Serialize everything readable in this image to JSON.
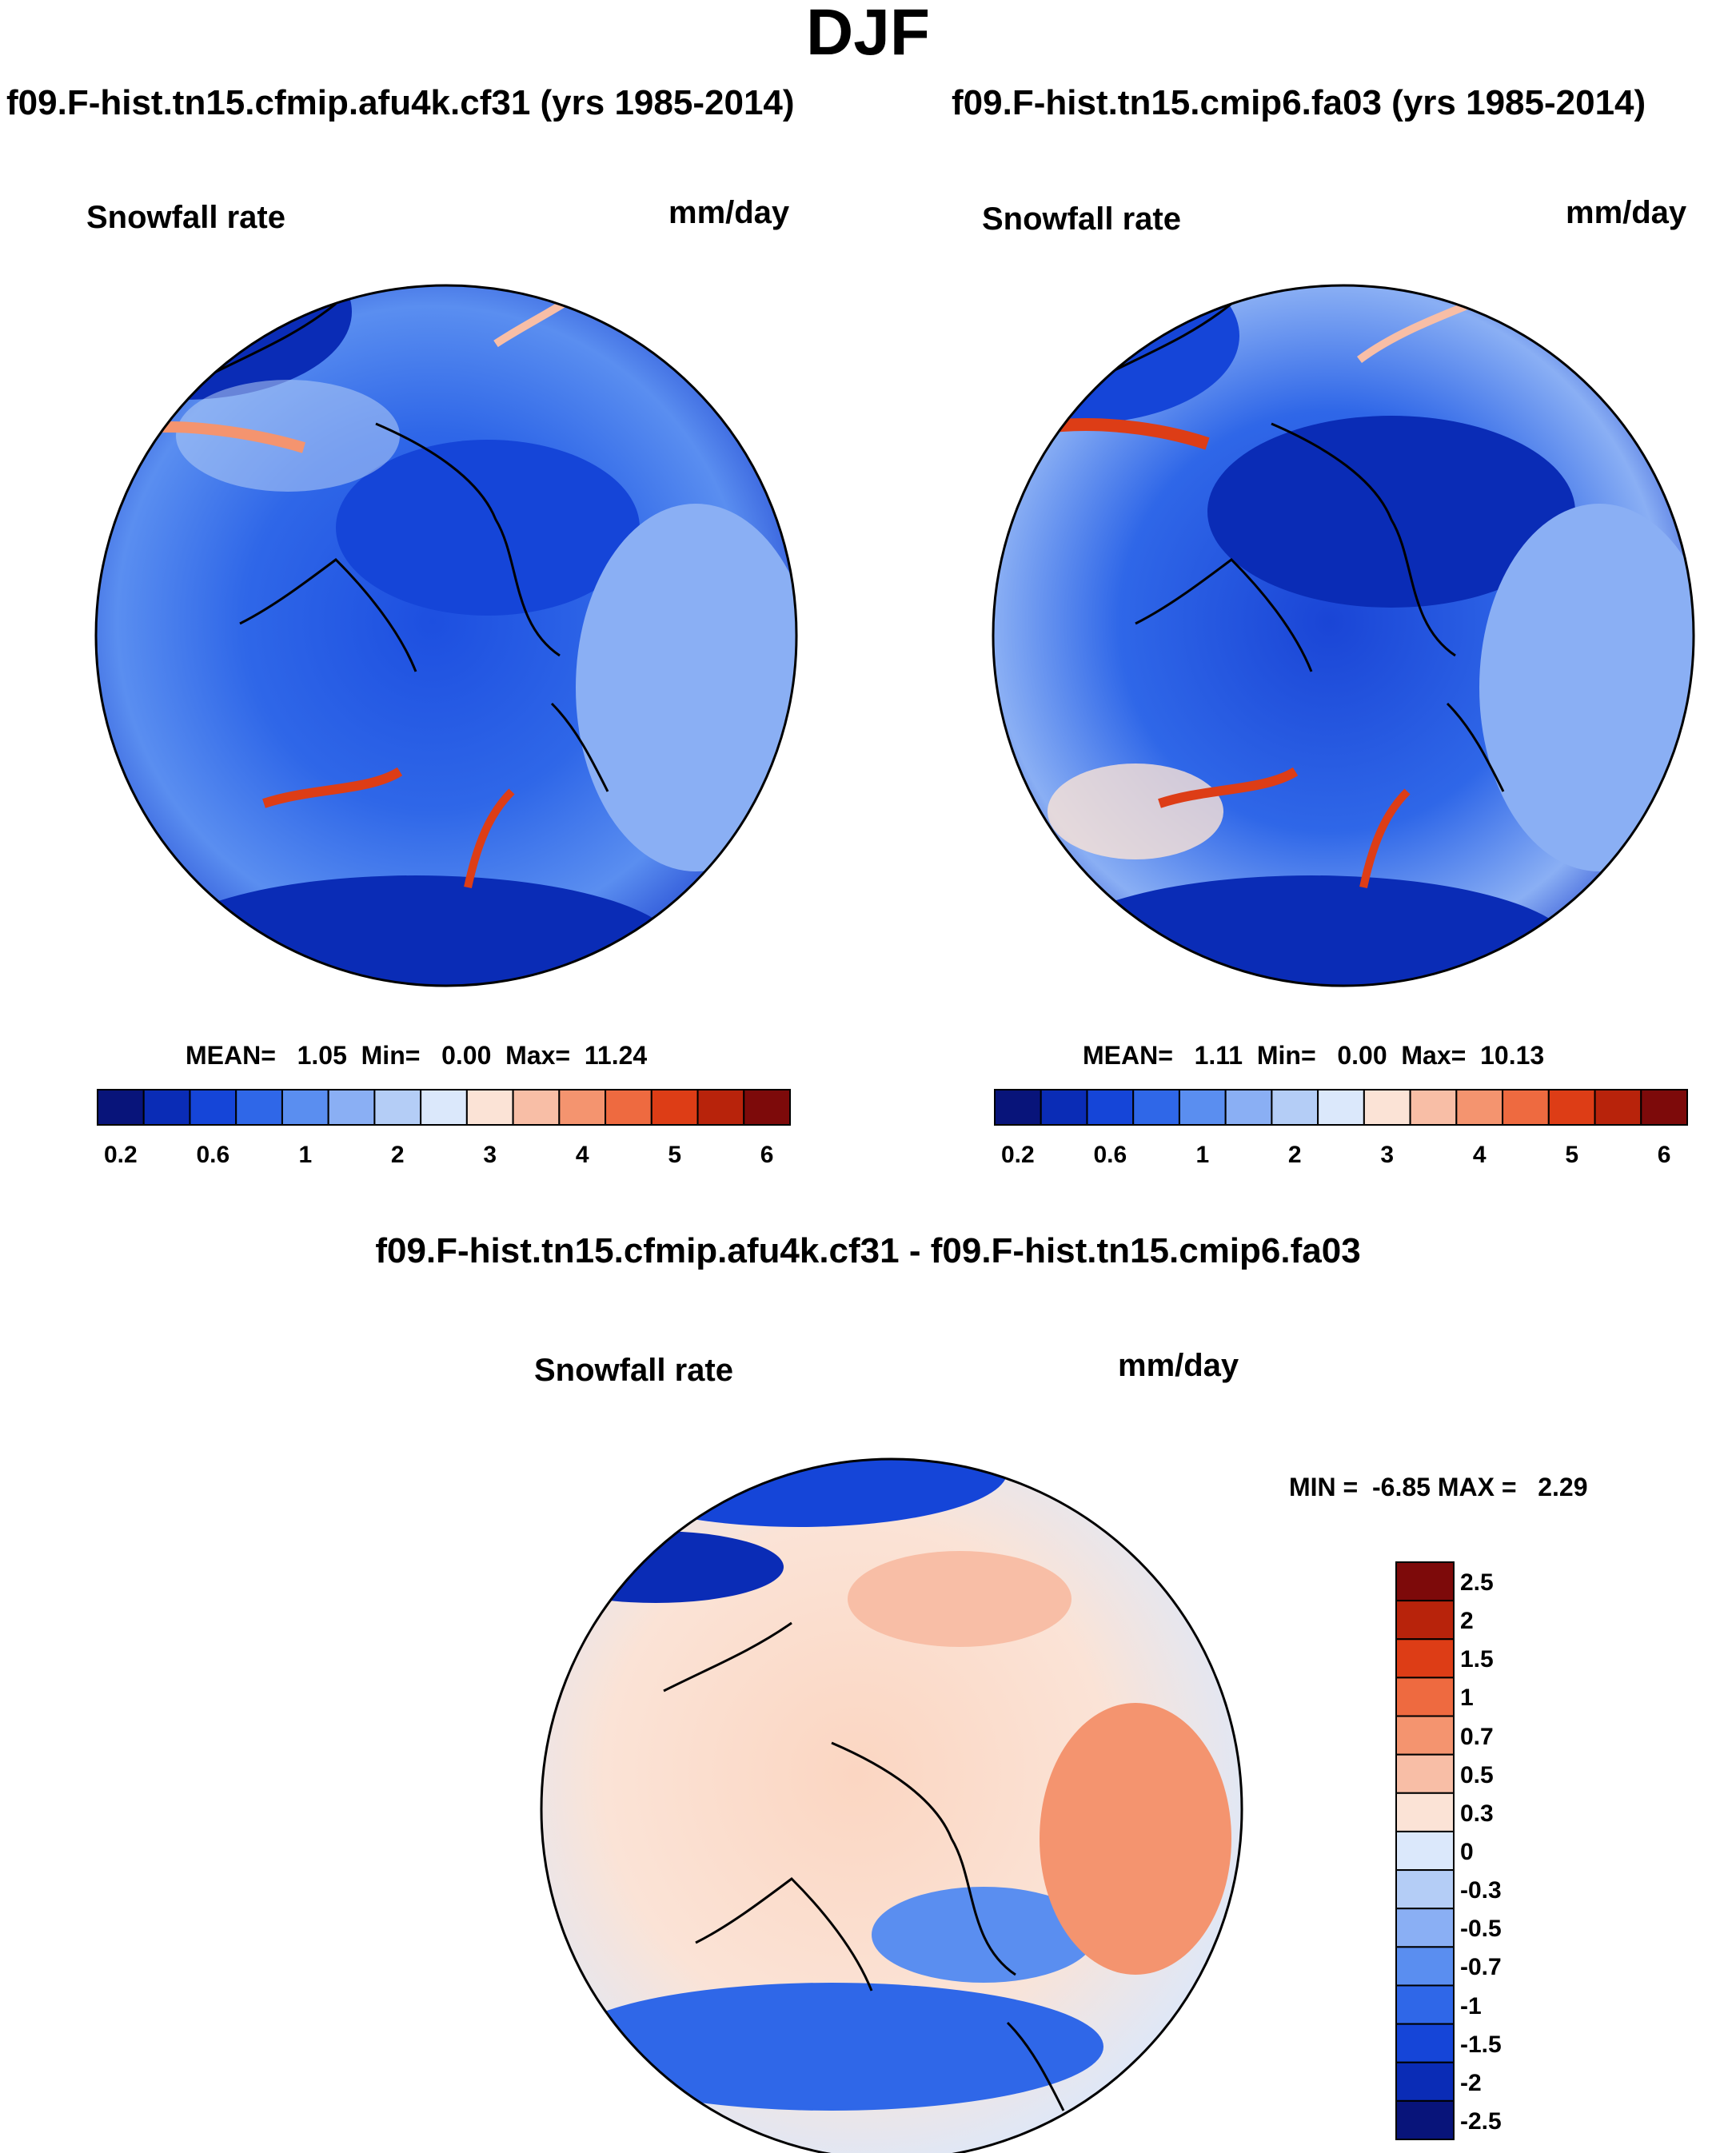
{
  "season": "DJF",
  "panels": [
    {
      "title": "f09.F-hist.tn15.cfmip.afu4k.cf31 (yrs 1985-2014)",
      "variable": "Snowfall rate",
      "units": "mm/day",
      "stats": {
        "mean_label": "MEAN=",
        "mean": "1.05",
        "min_label": "Min=",
        "min": "0.00",
        "max_label": "Max=",
        "max": "11.24"
      }
    },
    {
      "title": "f09.F-hist.tn15.cmip6.fa03 (yrs 1985-2014)",
      "variable": "Snowfall rate",
      "units": "mm/day",
      "stats": {
        "mean_label": "MEAN=",
        "mean": "1.11",
        "min_label": "Min=",
        "min": "0.00",
        "max_label": "Max=",
        "max": "10.13"
      }
    }
  ],
  "diff": {
    "title": "f09.F-hist.tn15.cfmip.afu4k.cf31 - f09.F-hist.tn15.cmip6.fa03",
    "variable": "Snowfall rate",
    "units": "mm/day",
    "min_label": "MIN =",
    "min": "-6.85",
    "max_label": "MAX =",
    "max": "2.29"
  },
  "chart_data": [
    {
      "type": "heatmap",
      "title": "f09.F-hist.tn15.cfmip.afu4k.cf31 (yrs 1985-2014)",
      "projection": "north polar stereographic",
      "variable": "Snowfall rate",
      "units": "mm/day",
      "mean": 1.05,
      "min": 0.0,
      "max": 11.24,
      "colorbar_levels": [
        0.2,
        0.4,
        0.6,
        0.8,
        1,
        1.5,
        2,
        2.5,
        3,
        3.5,
        4,
        4.5,
        5,
        5.5,
        6
      ],
      "colorbar_tick_labels": [
        "0.2",
        "0.6",
        "1",
        "2",
        "3",
        "4",
        "5",
        "6"
      ],
      "colors": [
        "#08147a",
        "#0a2cb6",
        "#1545d8",
        "#2f67e8",
        "#5a8ef0",
        "#8aaff4",
        "#b4cdf6",
        "#dbe8fb",
        "#fbe3d6",
        "#f8bea6",
        "#f4946f",
        "#ee6a40",
        "#dd3d16",
        "#b8230b",
        "#7d0a0a"
      ]
    },
    {
      "type": "heatmap",
      "title": "f09.F-hist.tn15.cmip6.fa03 (yrs 1985-2014)",
      "projection": "north polar stereographic",
      "variable": "Snowfall rate",
      "units": "mm/day",
      "mean": 1.11,
      "min": 0.0,
      "max": 10.13,
      "colorbar_levels": [
        0.2,
        0.4,
        0.6,
        0.8,
        1,
        1.5,
        2,
        2.5,
        3,
        3.5,
        4,
        4.5,
        5,
        5.5,
        6
      ],
      "colorbar_tick_labels": [
        "0.2",
        "0.6",
        "1",
        "2",
        "3",
        "4",
        "5",
        "6"
      ],
      "colors": [
        "#08147a",
        "#0a2cb6",
        "#1545d8",
        "#2f67e8",
        "#5a8ef0",
        "#8aaff4",
        "#b4cdf6",
        "#dbe8fb",
        "#fbe3d6",
        "#f8bea6",
        "#f4946f",
        "#ee6a40",
        "#dd3d16",
        "#b8230b",
        "#7d0a0a"
      ]
    },
    {
      "type": "heatmap",
      "title": "f09.F-hist.tn15.cfmip.afu4k.cf31 - f09.F-hist.tn15.cmip6.fa03",
      "projection": "north polar stereographic",
      "variable": "Snowfall rate",
      "units": "mm/day",
      "min": -6.85,
      "max": 2.29,
      "colorbar_tick_labels": [
        "2.5",
        "2",
        "1.5",
        "1",
        "0.7",
        "0.5",
        "0.3",
        "0",
        "-0.3",
        "-0.5",
        "-0.7",
        "-1",
        "-1.5",
        "-2",
        "-2.5"
      ],
      "colors": [
        "#7d0a0a",
        "#b8230b",
        "#dd3d16",
        "#ee6a40",
        "#f4946f",
        "#f8bea6",
        "#fbe3d6",
        "#dbe8fb",
        "#b4cdf6",
        "#8aaff4",
        "#5a8ef0",
        "#2f67e8",
        "#1545d8",
        "#0a2cb6",
        "#08147a"
      ]
    }
  ]
}
